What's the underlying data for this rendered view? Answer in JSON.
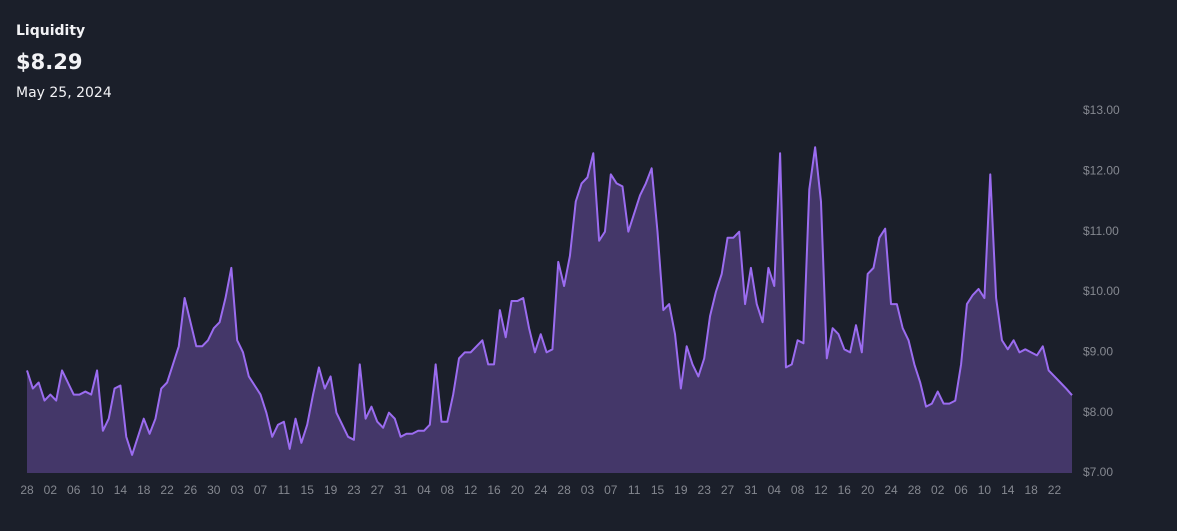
{
  "chart_data": {
    "type": "area",
    "title": "Liquidity",
    "headline": "$8.29",
    "date": "May 25, 2024",
    "categories": [
      "28",
      null,
      null,
      null,
      "02",
      null,
      null,
      null,
      "06",
      null,
      null,
      null,
      "10",
      null,
      null,
      null,
      "14",
      null,
      null,
      null,
      "18",
      null,
      null,
      null,
      "22",
      null,
      null,
      null,
      "26",
      null,
      null,
      null,
      "30",
      null,
      null,
      null,
      "03",
      null,
      null,
      null,
      "07",
      null,
      null,
      null,
      "11",
      null,
      null,
      null,
      "15",
      null,
      null,
      null,
      "19",
      null,
      null,
      null,
      "23",
      null,
      null,
      null,
      "27",
      null,
      null,
      null,
      "31",
      null,
      null,
      null,
      "04",
      null,
      null,
      null,
      "08",
      null,
      null,
      null,
      "12",
      null,
      null,
      null,
      "16",
      null,
      null,
      null,
      "20",
      null,
      null,
      null,
      "24",
      null,
      null,
      null,
      "28",
      null,
      null,
      null,
      "03",
      null,
      null,
      null,
      "07",
      null,
      null,
      null,
      "11",
      null,
      null,
      null,
      "15",
      null,
      null,
      null,
      "19",
      null,
      null,
      null,
      "23",
      null,
      null,
      null,
      "27",
      null,
      null,
      null,
      "31",
      null,
      null,
      null,
      "04",
      null,
      null,
      null,
      "08",
      null,
      null,
      null,
      "12",
      null,
      null,
      null,
      "16",
      null,
      null,
      null,
      "20",
      null,
      null,
      null,
      "24",
      null,
      null,
      null,
      "28",
      null,
      null,
      null,
      "02",
      null,
      null,
      null,
      "06",
      null,
      null,
      null,
      "10",
      null,
      null,
      null,
      "14",
      null,
      null,
      null,
      "18",
      null,
      null,
      null,
      "22",
      null,
      null,
      null
    ],
    "values": [
      8.7,
      8.4,
      8.5,
      8.2,
      8.3,
      8.2,
      8.7,
      8.5,
      8.3,
      8.3,
      8.35,
      8.3,
      8.7,
      7.7,
      7.9,
      8.4,
      8.45,
      7.6,
      7.3,
      7.6,
      7.9,
      7.65,
      7.9,
      8.4,
      8.5,
      8.8,
      9.1,
      9.9,
      9.5,
      9.1,
      9.1,
      9.2,
      9.4,
      9.5,
      9.9,
      10.4,
      9.2,
      9.0,
      8.6,
      8.45,
      8.3,
      8.0,
      7.6,
      7.8,
      7.85,
      7.4,
      7.9,
      7.5,
      7.8,
      8.3,
      8.75,
      8.4,
      8.6,
      8.0,
      7.8,
      7.6,
      7.55,
      8.8,
      7.9,
      8.1,
      7.85,
      7.75,
      8.0,
      7.9,
      7.6,
      7.65,
      7.65,
      7.7,
      7.7,
      7.8,
      8.8,
      7.85,
      7.85,
      8.3,
      8.9,
      9.0,
      9.0,
      9.1,
      9.2,
      8.8,
      8.8,
      9.7,
      9.25,
      9.85,
      9.85,
      9.9,
      9.4,
      9.0,
      9.3,
      9.0,
      9.05,
      10.5,
      10.1,
      10.6,
      11.5,
      11.8,
      11.9,
      12.3,
      10.85,
      11.0,
      11.95,
      11.8,
      11.75,
      11.0,
      11.3,
      11.6,
      11.8,
      12.05,
      11.0,
      9.7,
      9.8,
      9.3,
      8.4,
      9.1,
      8.8,
      8.6,
      8.9,
      9.6,
      10.0,
      10.3,
      10.9,
      10.9,
      11.0,
      9.8,
      10.4,
      9.8,
      9.5,
      10.4,
      10.1,
      12.3,
      8.75,
      8.8,
      9.2,
      9.15,
      11.7,
      12.4,
      11.5,
      8.9,
      9.4,
      9.3,
      9.05,
      9.0,
      9.45,
      9.0,
      10.3,
      10.4,
      10.9,
      11.05,
      9.8,
      9.8,
      9.4,
      9.2,
      8.8,
      8.5,
      8.1,
      8.15,
      8.35,
      8.15,
      8.15,
      8.2,
      8.8,
      9.8,
      9.95,
      10.05,
      9.9,
      11.95,
      9.9,
      9.2,
      9.05,
      9.2,
      9.0,
      9.05,
      9.0,
      8.95,
      9.1,
      8.7,
      8.6,
      8.5,
      8.4,
      8.29
    ],
    "line_color": "#9b6cf0",
    "fill_color": "#443769",
    "ylim": [
      7,
      13
    ],
    "yticks": [
      {
        "value": 7,
        "label": "$7.00"
      },
      {
        "value": 8,
        "label": "$8.00"
      },
      {
        "value": 9,
        "label": "$9.00"
      },
      {
        "value": 10,
        "label": "$10.00"
      },
      {
        "value": 11,
        "label": "$11.00"
      },
      {
        "value": 12,
        "label": "$12.00"
      },
      {
        "value": 13,
        "label": "$13.00"
      }
    ],
    "grid": false
  }
}
